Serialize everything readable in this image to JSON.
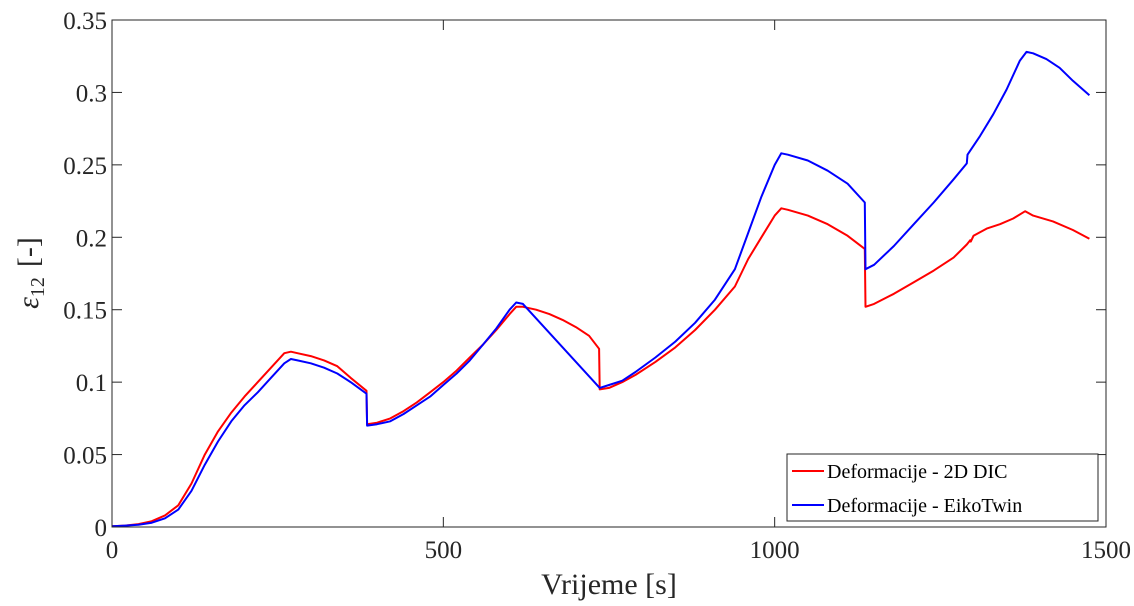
{
  "chart_data": {
    "type": "line",
    "title": "",
    "xlabel": "Vrijeme [s]",
    "ylabel": "ε12 [-]",
    "ylabel_parts": {
      "symbol": "ε",
      "subscript": "12",
      "unit": "[-]"
    },
    "xlim": [
      0,
      1500
    ],
    "ylim": [
      0,
      0.35
    ],
    "xticks": [
      0,
      500,
      1000,
      1500
    ],
    "xtick_labels": [
      "0",
      "500",
      "1000",
      "1500"
    ],
    "yticks": [
      0,
      0.05,
      0.1,
      0.15,
      0.2,
      0.25,
      0.3,
      0.35
    ],
    "ytick_labels": [
      "0",
      "0.05",
      "0.1",
      "0.15",
      "0.2",
      "0.25",
      "0.3",
      "0.35"
    ],
    "grid": false,
    "legend_position": "bottom-right",
    "series": [
      {
        "name": "Deformacije - 2D DIC",
        "color": "#ff0000",
        "points": [
          [
            0,
            0.0005
          ],
          [
            20,
            0.001
          ],
          [
            40,
            0.002
          ],
          [
            60,
            0.004
          ],
          [
            80,
            0.008
          ],
          [
            100,
            0.015
          ],
          [
            120,
            0.03
          ],
          [
            140,
            0.05
          ],
          [
            160,
            0.066
          ],
          [
            180,
            0.079
          ],
          [
            200,
            0.09
          ],
          [
            220,
            0.1
          ],
          [
            240,
            0.11
          ],
          [
            260,
            0.12
          ],
          [
            270,
            0.121
          ],
          [
            280,
            0.12
          ],
          [
            300,
            0.118
          ],
          [
            320,
            0.115
          ],
          [
            340,
            0.111
          ],
          [
            360,
            0.103
          ],
          [
            384,
            0.094
          ],
          [
            385,
            0.071
          ],
          [
            400,
            0.072
          ],
          [
            420,
            0.075
          ],
          [
            440,
            0.08
          ],
          [
            460,
            0.086
          ],
          [
            480,
            0.093
          ],
          [
            500,
            0.1
          ],
          [
            520,
            0.108
          ],
          [
            540,
            0.117
          ],
          [
            560,
            0.126
          ],
          [
            580,
            0.136
          ],
          [
            600,
            0.147
          ],
          [
            610,
            0.152
          ],
          [
            620,
            0.152
          ],
          [
            640,
            0.15
          ],
          [
            660,
            0.147
          ],
          [
            680,
            0.143
          ],
          [
            700,
            0.138
          ],
          [
            720,
            0.132
          ],
          [
            735,
            0.123
          ],
          [
            736,
            0.095
          ],
          [
            750,
            0.096
          ],
          [
            770,
            0.1
          ],
          [
            790,
            0.105
          ],
          [
            820,
            0.114
          ],
          [
            850,
            0.124
          ],
          [
            880,
            0.136
          ],
          [
            910,
            0.15
          ],
          [
            940,
            0.166
          ],
          [
            960,
            0.185
          ],
          [
            980,
            0.2
          ],
          [
            1000,
            0.215
          ],
          [
            1010,
            0.22
          ],
          [
            1020,
            0.219
          ],
          [
            1050,
            0.215
          ],
          [
            1080,
            0.209
          ],
          [
            1110,
            0.201
          ],
          [
            1136,
            0.192
          ],
          [
            1137,
            0.152
          ],
          [
            1150,
            0.154
          ],
          [
            1180,
            0.161
          ],
          [
            1210,
            0.169
          ],
          [
            1240,
            0.177
          ],
          [
            1270,
            0.186
          ],
          [
            1290,
            0.195
          ],
          [
            1295,
            0.198
          ],
          [
            1296,
            0.197
          ],
          [
            1300,
            0.201
          ],
          [
            1320,
            0.206
          ],
          [
            1340,
            0.209
          ],
          [
            1360,
            0.213
          ],
          [
            1378,
            0.218
          ],
          [
            1390,
            0.215
          ],
          [
            1420,
            0.211
          ],
          [
            1450,
            0.205
          ],
          [
            1475,
            0.199
          ]
        ]
      },
      {
        "name": "Deformacije - EikoTwin",
        "color": "#0000ff",
        "points": [
          [
            0,
            0.0005
          ],
          [
            20,
            0.001
          ],
          [
            40,
            0.0015
          ],
          [
            60,
            0.003
          ],
          [
            80,
            0.006
          ],
          [
            100,
            0.012
          ],
          [
            120,
            0.025
          ],
          [
            140,
            0.043
          ],
          [
            160,
            0.059
          ],
          [
            180,
            0.073
          ],
          [
            200,
            0.084
          ],
          [
            220,
            0.093
          ],
          [
            240,
            0.103
          ],
          [
            260,
            0.113
          ],
          [
            270,
            0.116
          ],
          [
            280,
            0.115
          ],
          [
            300,
            0.113
          ],
          [
            320,
            0.11
          ],
          [
            340,
            0.106
          ],
          [
            360,
            0.1
          ],
          [
            384,
            0.092
          ],
          [
            385,
            0.07
          ],
          [
            400,
            0.071
          ],
          [
            420,
            0.073
          ],
          [
            440,
            0.078
          ],
          [
            460,
            0.084
          ],
          [
            480,
            0.09
          ],
          [
            500,
            0.098
          ],
          [
            520,
            0.106
          ],
          [
            540,
            0.115
          ],
          [
            560,
            0.126
          ],
          [
            580,
            0.137
          ],
          [
            600,
            0.15
          ],
          [
            610,
            0.155
          ],
          [
            620,
            0.154
          ],
          [
            736,
            0.096
          ],
          [
            750,
            0.098
          ],
          [
            770,
            0.101
          ],
          [
            790,
            0.107
          ],
          [
            820,
            0.117
          ],
          [
            850,
            0.128
          ],
          [
            880,
            0.141
          ],
          [
            910,
            0.157
          ],
          [
            940,
            0.178
          ],
          [
            960,
            0.203
          ],
          [
            980,
            0.228
          ],
          [
            1000,
            0.25
          ],
          [
            1010,
            0.258
          ],
          [
            1020,
            0.257
          ],
          [
            1050,
            0.253
          ],
          [
            1080,
            0.246
          ],
          [
            1110,
            0.237
          ],
          [
            1136,
            0.224
          ],
          [
            1137,
            0.178
          ],
          [
            1150,
            0.181
          ],
          [
            1180,
            0.194
          ],
          [
            1210,
            0.209
          ],
          [
            1240,
            0.224
          ],
          [
            1270,
            0.24
          ],
          [
            1290,
            0.251
          ],
          [
            1291,
            0.257
          ],
          [
            1310,
            0.27
          ],
          [
            1330,
            0.285
          ],
          [
            1350,
            0.302
          ],
          [
            1370,
            0.322
          ],
          [
            1380,
            0.328
          ],
          [
            1390,
            0.327
          ],
          [
            1410,
            0.323
          ],
          [
            1430,
            0.317
          ],
          [
            1450,
            0.308
          ],
          [
            1475,
            0.298
          ]
        ]
      }
    ]
  }
}
